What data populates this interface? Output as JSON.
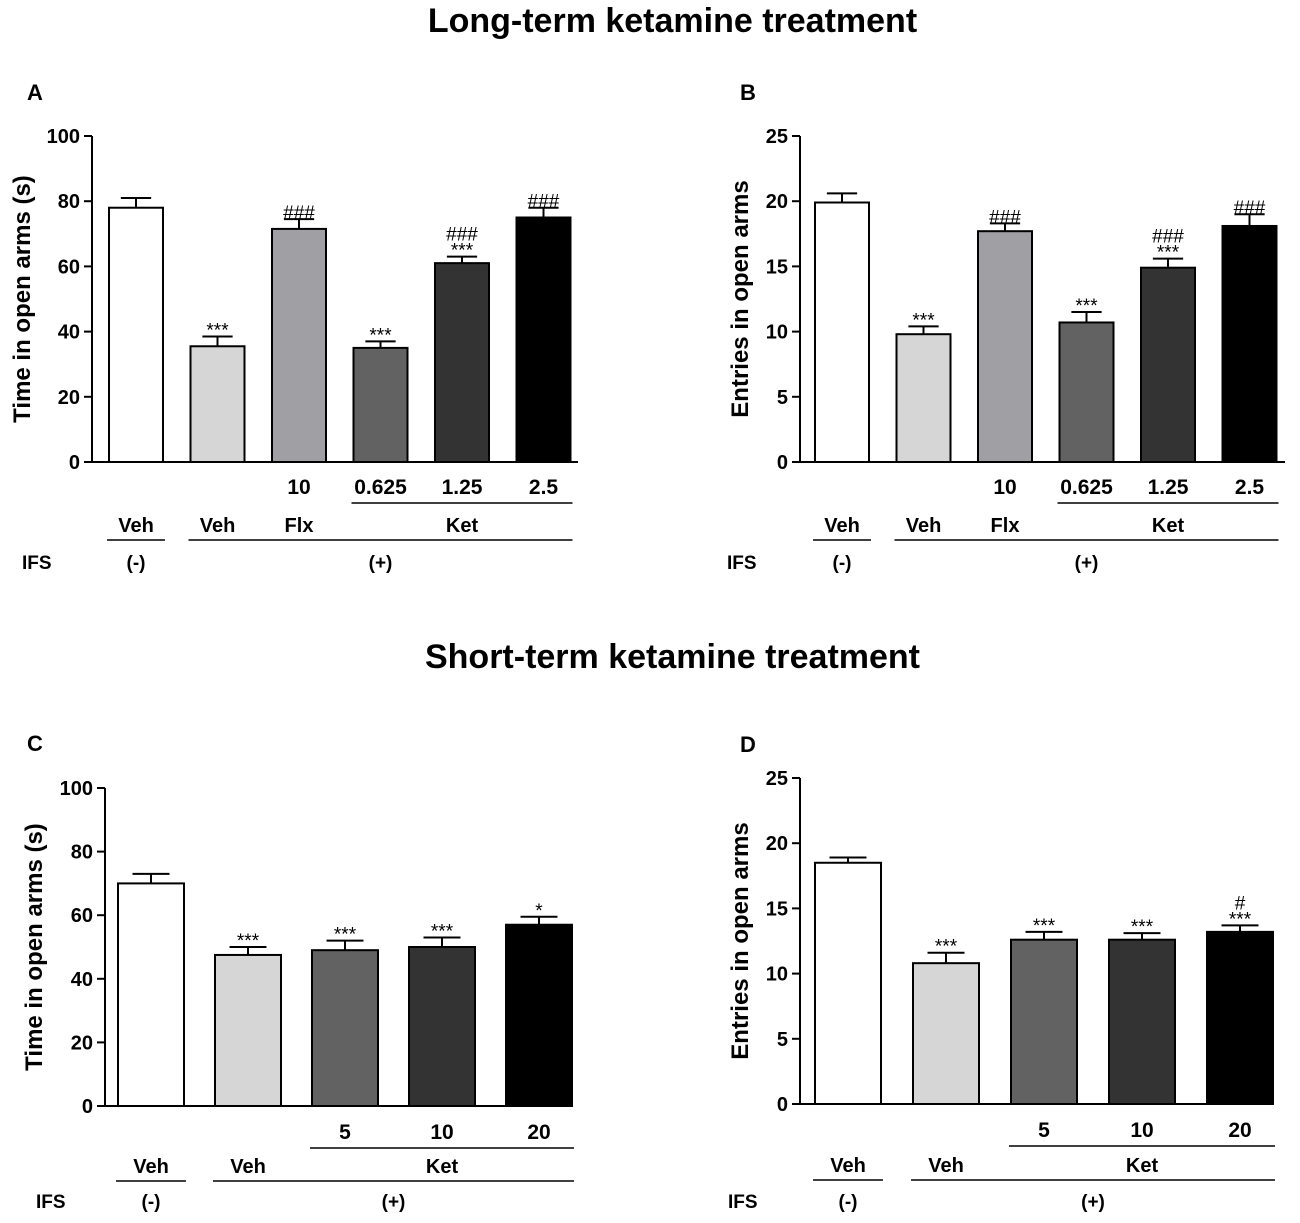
{
  "section_titles": {
    "long": "Long-term ketamine treatment",
    "short": "Short-term ketamine treatment"
  },
  "colors": {
    "veh_control": "#ffffff",
    "veh_ifs": "#d6d6d6",
    "flx": "#a0a0a4",
    "ket_low": "#626262",
    "ket_mid": "#333333",
    "ket_high": "#000000"
  },
  "chart_data": [
    {
      "panel": "A",
      "type": "bar",
      "title": "Long-term ketamine treatment",
      "ylabel": "Time in open arms (s)",
      "ylim": [
        0,
        100
      ],
      "yticks": [
        0,
        20,
        40,
        60,
        80,
        100
      ],
      "ytick_labels": [
        "0",
        "20",
        "40",
        "60",
        "80",
        "100"
      ],
      "categories": [
        "Veh (-)",
        "Veh (+)",
        "Flx 10",
        "Ket 0.625",
        "Ket 1.25",
        "Ket 2.5"
      ],
      "dose_labels": [
        "",
        "",
        "10",
        "0.625",
        "1.25",
        "2.5"
      ],
      "values": [
        78,
        35.5,
        71.5,
        35,
        61,
        75
      ],
      "errors": [
        3,
        3,
        3,
        2,
        2,
        3
      ],
      "significance": [
        [],
        [
          "***"
        ],
        [
          "###"
        ],
        [
          "***"
        ],
        [
          "###",
          "***"
        ],
        [
          "###"
        ]
      ],
      "fill_keys": [
        "veh_control",
        "veh_ifs",
        "flx",
        "ket_low",
        "ket_mid",
        "ket_high"
      ],
      "groups": {
        "veh_control": "Veh",
        "veh_ifs": "Veh",
        "flx": "Flx",
        "ket": "Ket",
        "ifs_label": "IFS",
        "ifs_neg": "(-)",
        "ifs_pos": "(+)"
      }
    },
    {
      "panel": "B",
      "type": "bar",
      "title": "Long-term ketamine treatment",
      "ylabel": "Entries in open arms",
      "ylim": [
        0,
        25
      ],
      "yticks": [
        0,
        5,
        10,
        15,
        20,
        25
      ],
      "ytick_labels": [
        "0",
        "5",
        "10",
        "15",
        "20",
        "25"
      ],
      "categories": [
        "Veh (-)",
        "Veh (+)",
        "Flx 10",
        "Ket 0.625",
        "Ket 1.25",
        "Ket 2.5"
      ],
      "dose_labels": [
        "",
        "",
        "10",
        "0.625",
        "1.25",
        "2.5"
      ],
      "values": [
        19.9,
        9.8,
        17.7,
        10.7,
        14.9,
        18.1
      ],
      "errors": [
        0.7,
        0.6,
        0.6,
        0.8,
        0.7,
        0.9
      ],
      "significance": [
        [],
        [
          "***"
        ],
        [
          "###"
        ],
        [
          "***"
        ],
        [
          "###",
          "***"
        ],
        [
          "###"
        ]
      ],
      "fill_keys": [
        "veh_control",
        "veh_ifs",
        "flx",
        "ket_low",
        "ket_mid",
        "ket_high"
      ],
      "groups": {
        "veh_control": "Veh",
        "veh_ifs": "Veh",
        "flx": "Flx",
        "ket": "Ket",
        "ifs_label": "IFS",
        "ifs_neg": "(-)",
        "ifs_pos": "(+)"
      }
    },
    {
      "panel": "C",
      "type": "bar",
      "title": "Short-term ketamine treatment",
      "ylabel": "Time in open arms (s)",
      "ylim": [
        0,
        100
      ],
      "yticks": [
        0,
        20,
        40,
        60,
        80,
        100
      ],
      "ytick_labels": [
        "0",
        "20",
        "40",
        "60",
        "80",
        "100"
      ],
      "categories": [
        "Veh (-)",
        "Veh (+)",
        "Ket 5",
        "Ket 10",
        "Ket 20"
      ],
      "dose_labels": [
        "",
        "",
        "5",
        "10",
        "20"
      ],
      "values": [
        70,
        47.5,
        49,
        50,
        57
      ],
      "errors": [
        3,
        2.5,
        3,
        3,
        2.5
      ],
      "significance": [
        [],
        [
          "***"
        ],
        [
          "***"
        ],
        [
          "***"
        ],
        [
          "*"
        ]
      ],
      "fill_keys": [
        "veh_control",
        "veh_ifs",
        "ket_low",
        "ket_mid",
        "ket_high"
      ],
      "groups": {
        "veh_control": "Veh",
        "veh_ifs": "Veh",
        "ket": "Ket",
        "ifs_label": "IFS",
        "ifs_neg": "(-)",
        "ifs_pos": "(+)"
      }
    },
    {
      "panel": "D",
      "type": "bar",
      "title": "Short-term ketamine treatment",
      "ylabel": "Entries in open arms",
      "ylim": [
        0,
        25
      ],
      "yticks": [
        0,
        5,
        10,
        15,
        20,
        25
      ],
      "ytick_labels": [
        "0",
        "5",
        "10",
        "15",
        "20",
        "25"
      ],
      "categories": [
        "Veh (-)",
        "Veh (+)",
        "Ket 5",
        "Ket 10",
        "Ket 20"
      ],
      "dose_labels": [
        "",
        "",
        "5",
        "10",
        "20"
      ],
      "values": [
        18.5,
        10.8,
        12.6,
        12.6,
        13.2
      ],
      "errors": [
        0.4,
        0.8,
        0.6,
        0.5,
        0.5
      ],
      "significance": [
        [],
        [
          "***"
        ],
        [
          "***"
        ],
        [
          "***"
        ],
        [
          "#",
          "***"
        ]
      ],
      "fill_keys": [
        "veh_control",
        "veh_ifs",
        "ket_low",
        "ket_mid",
        "ket_high"
      ],
      "groups": {
        "veh_control": "Veh",
        "veh_ifs": "Veh",
        "ket": "Ket",
        "ifs_label": "IFS",
        "ifs_neg": "(-)",
        "ifs_pos": "(+)"
      }
    }
  ]
}
